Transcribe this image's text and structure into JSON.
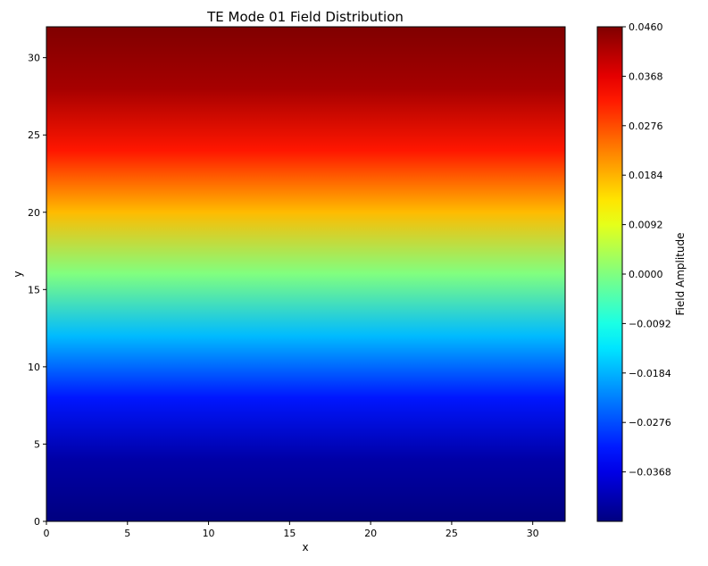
{
  "chart_data": {
    "type": "heatmap",
    "title": "TE Mode 01 Field Distribution",
    "xlabel": "x",
    "ylabel": "y",
    "xlim": [
      0,
      32
    ],
    "ylim": [
      0,
      32
    ],
    "x_ticks": [
      "0",
      "5",
      "10",
      "15",
      "20",
      "25",
      "30"
    ],
    "x_tick_values": [
      0,
      5,
      10,
      15,
      20,
      25,
      30
    ],
    "y_ticks": [
      "0",
      "5",
      "10",
      "15",
      "20",
      "25",
      "30"
    ],
    "y_tick_values": [
      0,
      5,
      10,
      15,
      20,
      25,
      30
    ],
    "field": "amplitude varies with y only: about -0.046 at y=0, 0 near y=16, about 0.046 at y=32",
    "field_profile": {
      "y": [
        0,
        4,
        8,
        12,
        16,
        20,
        24,
        28,
        32
      ],
      "value": [
        -0.046,
        -0.0425,
        -0.0325,
        -0.0176,
        0.0,
        0.0176,
        0.0325,
        0.0425,
        0.046
      ]
    },
    "colormap": "jet",
    "colorbar": {
      "label": "Field Amplitude",
      "min": -0.046,
      "max": 0.046,
      "ticks": [
        "−0.0368",
        "−0.0276",
        "−0.0184",
        "−0.0092",
        "0.0000",
        "0.0092",
        "0.0184",
        "0.0276",
        "0.0368",
        "0.0460"
      ],
      "tick_values": [
        -0.0368,
        -0.0276,
        -0.0184,
        -0.0092,
        0.0,
        0.0092,
        0.0184,
        0.0276,
        0.0368,
        0.046
      ]
    },
    "grid": false
  }
}
